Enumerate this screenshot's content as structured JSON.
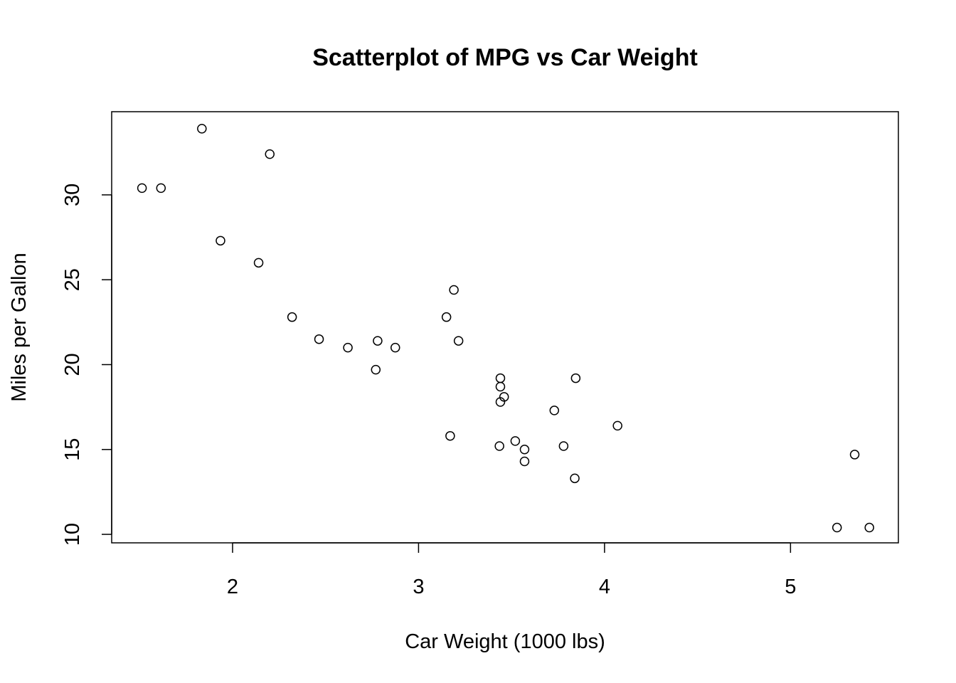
{
  "chart_data": {
    "type": "scatter",
    "title": "Scatterplot of MPG vs Car Weight",
    "xlabel": "Car Weight (1000 lbs)",
    "ylabel": "Miles per Gallon",
    "xlim": [
      1.35,
      5.58
    ],
    "ylim": [
      9.5,
      34.9
    ],
    "x_ticks": [
      2,
      3,
      4,
      5
    ],
    "x_tick_labels": [
      "2",
      "3",
      "4",
      "5"
    ],
    "y_ticks": [
      10,
      15,
      20,
      25,
      30
    ],
    "y_tick_labels": [
      "10",
      "15",
      "20",
      "25",
      "30"
    ],
    "grid": false,
    "legend": "none",
    "points": [
      {
        "x": 2.62,
        "y": 21.0
      },
      {
        "x": 2.875,
        "y": 21.0
      },
      {
        "x": 2.32,
        "y": 22.8
      },
      {
        "x": 3.215,
        "y": 21.4
      },
      {
        "x": 3.44,
        "y": 18.7
      },
      {
        "x": 3.46,
        "y": 18.1
      },
      {
        "x": 3.57,
        "y": 14.3
      },
      {
        "x": 3.19,
        "y": 24.4
      },
      {
        "x": 3.15,
        "y": 22.8
      },
      {
        "x": 3.44,
        "y": 19.2
      },
      {
        "x": 3.44,
        "y": 17.8
      },
      {
        "x": 4.07,
        "y": 16.4
      },
      {
        "x": 3.73,
        "y": 17.3
      },
      {
        "x": 3.78,
        "y": 15.2
      },
      {
        "x": 5.25,
        "y": 10.4
      },
      {
        "x": 5.424,
        "y": 10.4
      },
      {
        "x": 5.345,
        "y": 14.7
      },
      {
        "x": 2.2,
        "y": 32.4
      },
      {
        "x": 1.615,
        "y": 30.4
      },
      {
        "x": 1.835,
        "y": 33.9
      },
      {
        "x": 2.465,
        "y": 21.5
      },
      {
        "x": 3.52,
        "y": 15.5
      },
      {
        "x": 3.435,
        "y": 15.2
      },
      {
        "x": 3.84,
        "y": 13.3
      },
      {
        "x": 3.845,
        "y": 19.2
      },
      {
        "x": 1.935,
        "y": 27.3
      },
      {
        "x": 2.14,
        "y": 26.0
      },
      {
        "x": 1.513,
        "y": 30.4
      },
      {
        "x": 3.17,
        "y": 15.8
      },
      {
        "x": 2.77,
        "y": 19.7
      },
      {
        "x": 3.57,
        "y": 15.0
      },
      {
        "x": 2.78,
        "y": 21.4
      }
    ]
  }
}
